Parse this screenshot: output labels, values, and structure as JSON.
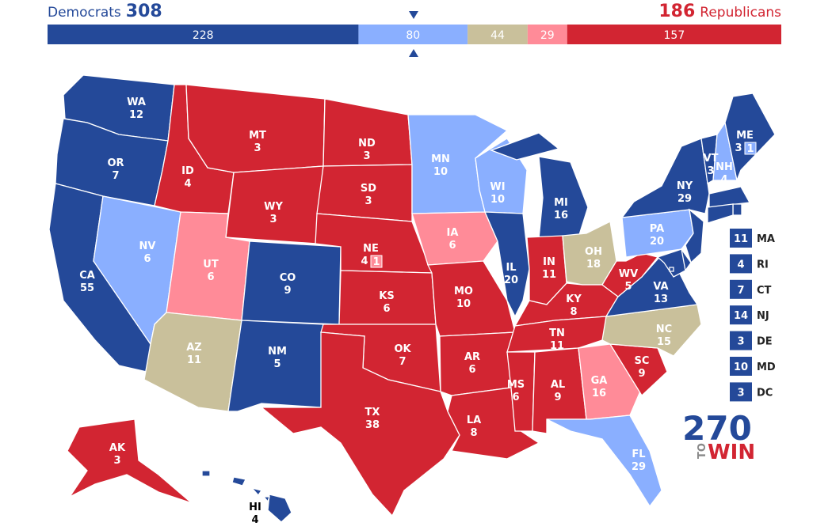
{
  "header": {
    "left_label": "Democrats",
    "left_total": 308,
    "right_total": 186,
    "right_label": "Republicans"
  },
  "bar": [
    {
      "value": 228,
      "color": "#244999"
    },
    {
      "value": 80,
      "color": "#8aafff"
    },
    {
      "value": 44,
      "color": "#c9c09b"
    },
    {
      "value": 29,
      "color": "#ff8b98"
    },
    {
      "value": 157,
      "color": "#d22532"
    }
  ],
  "states": [
    {
      "abbr": "WA",
      "ev": 12,
      "color": "#244999"
    },
    {
      "abbr": "OR",
      "ev": 7,
      "color": "#244999"
    },
    {
      "abbr": "CA",
      "ev": 55,
      "color": "#244999"
    },
    {
      "abbr": "NV",
      "ev": 6,
      "color": "#8aafff"
    },
    {
      "abbr": "ID",
      "ev": 4,
      "color": "#d22532"
    },
    {
      "abbr": "MT",
      "ev": 3,
      "color": "#d22532"
    },
    {
      "abbr": "WY",
      "ev": 3,
      "color": "#d22532"
    },
    {
      "abbr": "UT",
      "ev": 6,
      "color": "#ff8b98"
    },
    {
      "abbr": "AZ",
      "ev": 11,
      "color": "#c9c09b"
    },
    {
      "abbr": "CO",
      "ev": 9,
      "color": "#244999"
    },
    {
      "abbr": "NM",
      "ev": 5,
      "color": "#244999"
    },
    {
      "abbr": "ND",
      "ev": 3,
      "color": "#d22532"
    },
    {
      "abbr": "SD",
      "ev": 3,
      "color": "#d22532"
    },
    {
      "abbr": "NE",
      "ev": 4,
      "color": "#d22532",
      "split": {
        "ev": 1,
        "color": "#ff8b98"
      }
    },
    {
      "abbr": "KS",
      "ev": 6,
      "color": "#d22532"
    },
    {
      "abbr": "OK",
      "ev": 7,
      "color": "#d22532"
    },
    {
      "abbr": "TX",
      "ev": 38,
      "color": "#d22532"
    },
    {
      "abbr": "MN",
      "ev": 10,
      "color": "#8aafff"
    },
    {
      "abbr": "IA",
      "ev": 6,
      "color": "#ff8b98"
    },
    {
      "abbr": "MO",
      "ev": 10,
      "color": "#d22532"
    },
    {
      "abbr": "AR",
      "ev": 6,
      "color": "#d22532"
    },
    {
      "abbr": "LA",
      "ev": 8,
      "color": "#d22532"
    },
    {
      "abbr": "WI",
      "ev": 10,
      "color": "#8aafff"
    },
    {
      "abbr": "IL",
      "ev": 20,
      "color": "#244999"
    },
    {
      "abbr": "MI",
      "ev": 16,
      "color": "#244999"
    },
    {
      "abbr": "IN",
      "ev": 11,
      "color": "#d22532"
    },
    {
      "abbr": "OH",
      "ev": 18,
      "color": "#c9c09b"
    },
    {
      "abbr": "KY",
      "ev": 8,
      "color": "#d22532"
    },
    {
      "abbr": "TN",
      "ev": 11,
      "color": "#d22532"
    },
    {
      "abbr": "MS",
      "ev": 6,
      "color": "#d22532"
    },
    {
      "abbr": "AL",
      "ev": 9,
      "color": "#d22532"
    },
    {
      "abbr": "GA",
      "ev": 16,
      "color": "#ff8b98"
    },
    {
      "abbr": "FL",
      "ev": 29,
      "color": "#8aafff"
    },
    {
      "abbr": "SC",
      "ev": 9,
      "color": "#d22532"
    },
    {
      "abbr": "NC",
      "ev": 15,
      "color": "#c9c09b"
    },
    {
      "abbr": "VA",
      "ev": 13,
      "color": "#244999"
    },
    {
      "abbr": "WV",
      "ev": 5,
      "color": "#d22532"
    },
    {
      "abbr": "PA",
      "ev": 20,
      "color": "#8aafff"
    },
    {
      "abbr": "NY",
      "ev": 29,
      "color": "#244999"
    },
    {
      "abbr": "VT",
      "ev": 3,
      "color": "#244999"
    },
    {
      "abbr": "NH",
      "ev": 4,
      "color": "#8aafff"
    },
    {
      "abbr": "ME",
      "ev": 3,
      "color": "#244999",
      "split": {
        "ev": 1,
        "color": "#8aafff"
      }
    },
    {
      "abbr": "MA",
      "ev": 11,
      "color": "#244999"
    },
    {
      "abbr": "RI",
      "ev": 4,
      "color": "#244999"
    },
    {
      "abbr": "CT",
      "ev": 7,
      "color": "#244999"
    },
    {
      "abbr": "NJ",
      "ev": 14,
      "color": "#244999"
    },
    {
      "abbr": "DE",
      "ev": 3,
      "color": "#244999"
    },
    {
      "abbr": "MD",
      "ev": 10,
      "color": "#244999"
    },
    {
      "abbr": "DC",
      "ev": 3,
      "color": "#244999"
    },
    {
      "abbr": "AK",
      "ev": 3,
      "color": "#d22532"
    },
    {
      "abbr": "HI",
      "ev": 4,
      "color": "#244999"
    }
  ],
  "logo": {
    "number": "270",
    "to": "TO",
    "win": "WIN"
  }
}
